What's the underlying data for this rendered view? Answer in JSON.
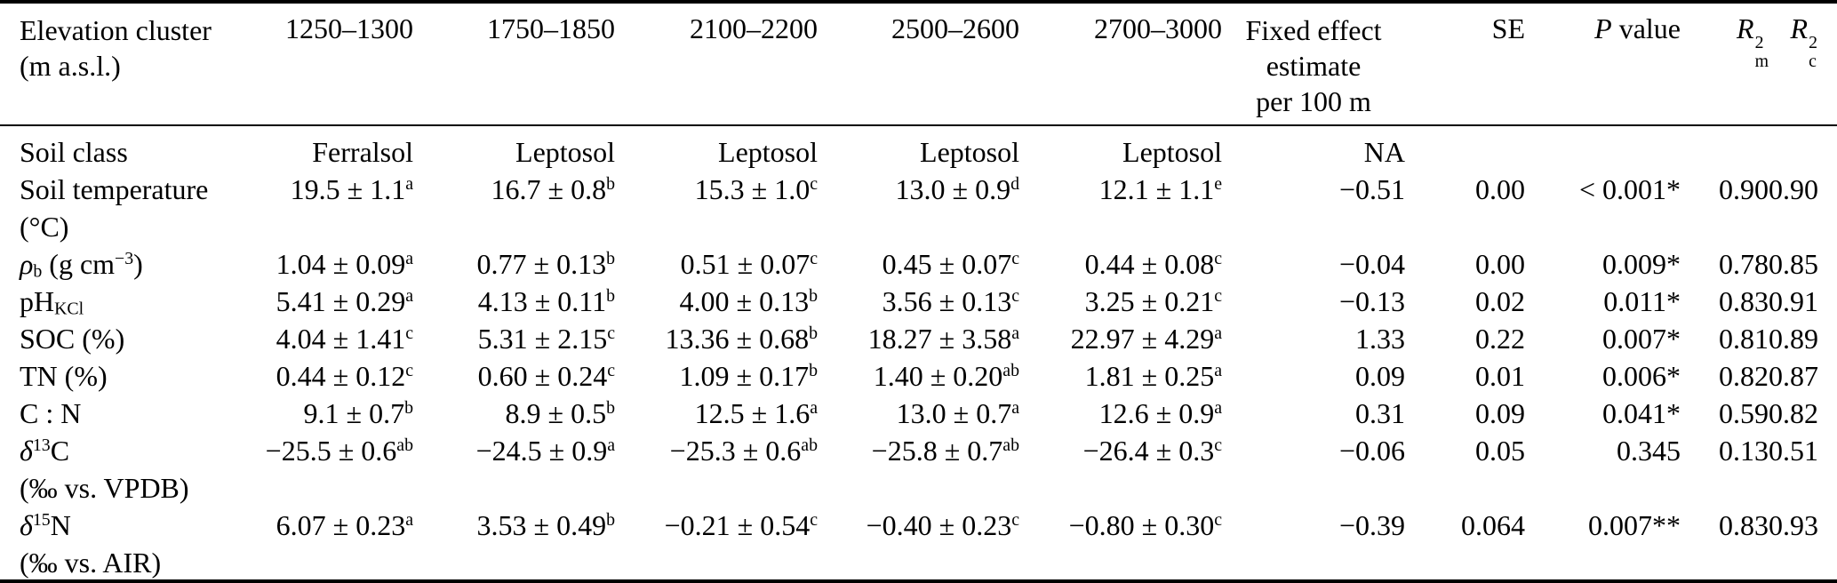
{
  "table": {
    "header": {
      "param_lines": [
        "Elevation cluster",
        "(m a.s.l.)"
      ],
      "clusters": [
        "1250–1300",
        "1750–1850",
        "2100–2200",
        "2500–2600",
        "2700–3000"
      ],
      "fixed_lines": [
        "Fixed effect",
        "estimate",
        "per 100 m"
      ],
      "se": "SE",
      "p_segments": [
        {
          "t": "P",
          "i": true
        },
        {
          "t": " value"
        }
      ],
      "r2m": {
        "base": "R",
        "sup": "2",
        "sub": "m"
      },
      "r2c": {
        "base": "R",
        "sup": "2",
        "sub": "c"
      }
    },
    "rows": [
      {
        "label": [
          {
            "t": "Soil class"
          }
        ],
        "label2": null,
        "cells": [
          {
            "v": "Ferralsol"
          },
          {
            "v": "Leptosol"
          },
          {
            "v": "Leptosol"
          },
          {
            "v": "Leptosol"
          },
          {
            "v": "Leptosol"
          }
        ],
        "fixed": "NA",
        "se": "",
        "p": "",
        "r2m": "",
        "r2c": ""
      },
      {
        "label": [
          {
            "t": "Soil temperature"
          }
        ],
        "label2": [
          {
            "t": "(°C)"
          }
        ],
        "cells": [
          {
            "v": "19.5 ± 1.1",
            "s": "a"
          },
          {
            "v": "16.7 ± 0.8",
            "s": "b"
          },
          {
            "v": "15.3 ± 1.0",
            "s": "c"
          },
          {
            "v": "13.0 ± 0.9",
            "s": "d"
          },
          {
            "v": "12.1 ± 1.1",
            "s": "e"
          }
        ],
        "fixed": "−0.51",
        "se": "0.00",
        "p": "< 0.001*",
        "r2m": "0.90",
        "r2c": "0.90"
      },
      {
        "label": [
          {
            "t": "ρ",
            "i": true
          },
          {
            "t": "b",
            "sub": true
          },
          {
            "t": " (g cm"
          },
          {
            "t": "−3",
            "sup": true
          },
          {
            "t": ")"
          }
        ],
        "label2": null,
        "cells": [
          {
            "v": "1.04 ± 0.09",
            "s": "a"
          },
          {
            "v": "0.77 ± 0.13",
            "s": "b"
          },
          {
            "v": "0.51 ± 0.07",
            "s": "c"
          },
          {
            "v": "0.45 ± 0.07",
            "s": "c"
          },
          {
            "v": "0.44 ± 0.08",
            "s": "c"
          }
        ],
        "fixed": "−0.04",
        "se": "0.00",
        "p": "0.009*",
        "r2m": "0.78",
        "r2c": "0.85"
      },
      {
        "label": [
          {
            "t": "pH"
          },
          {
            "t": "KCl",
            "sub": true
          }
        ],
        "label2": null,
        "cells": [
          {
            "v": "5.41 ± 0.29",
            "s": "a"
          },
          {
            "v": "4.13 ± 0.11",
            "s": "b"
          },
          {
            "v": "4.00 ± 0.13",
            "s": "b"
          },
          {
            "v": "3.56 ± 0.13",
            "s": "c"
          },
          {
            "v": "3.25 ± 0.21",
            "s": "c"
          }
        ],
        "fixed": "−0.13",
        "se": "0.02",
        "p": "0.011*",
        "r2m": "0.83",
        "r2c": "0.91"
      },
      {
        "label": [
          {
            "t": "SOC (%)"
          }
        ],
        "label2": null,
        "cells": [
          {
            "v": "4.04 ± 1.41",
            "s": "c"
          },
          {
            "v": "5.31 ± 2.15",
            "s": "c"
          },
          {
            "v": "13.36 ± 0.68",
            "s": "b"
          },
          {
            "v": "18.27 ± 3.58",
            "s": "a"
          },
          {
            "v": "22.97 ± 4.29",
            "s": "a"
          }
        ],
        "fixed": "1.33",
        "se": "0.22",
        "p": "0.007*",
        "r2m": "0.81",
        "r2c": "0.89"
      },
      {
        "label": [
          {
            "t": "TN (%)"
          }
        ],
        "label2": null,
        "cells": [
          {
            "v": "0.44 ± 0.12",
            "s": "c"
          },
          {
            "v": "0.60 ± 0.24",
            "s": "c"
          },
          {
            "v": "1.09 ± 0.17",
            "s": "b"
          },
          {
            "v": "1.40 ± 0.20",
            "s": "ab"
          },
          {
            "v": "1.81 ± 0.25",
            "s": "a"
          }
        ],
        "fixed": "0.09",
        "se": "0.01",
        "p": "0.006*",
        "r2m": "0.82",
        "r2c": "0.87"
      },
      {
        "label": [
          {
            "t": "C : N"
          }
        ],
        "label2": null,
        "cells": [
          {
            "v": "9.1 ± 0.7",
            "s": "b"
          },
          {
            "v": "8.9 ± 0.5",
            "s": "b"
          },
          {
            "v": "12.5 ± 1.6",
            "s": "a"
          },
          {
            "v": "13.0 ± 0.7",
            "s": "a"
          },
          {
            "v": "12.6 ± 0.9",
            "s": "a"
          }
        ],
        "fixed": "0.31",
        "se": "0.09",
        "p": "0.041*",
        "r2m": "0.59",
        "r2c": "0.82"
      },
      {
        "label": [
          {
            "t": "δ",
            "i": true
          },
          {
            "t": "13",
            "sup": true
          },
          {
            "t": "C"
          }
        ],
        "label2": [
          {
            "t": "(‰ vs. VPDB)"
          }
        ],
        "cells": [
          {
            "v": "−25.5 ± 0.6",
            "s": "ab"
          },
          {
            "v": "−24.5 ± 0.9",
            "s": "a"
          },
          {
            "v": "−25.3 ± 0.6",
            "s": "ab"
          },
          {
            "v": "−25.8 ± 0.7",
            "s": "ab"
          },
          {
            "v": "−26.4 ± 0.3",
            "s": "c"
          }
        ],
        "fixed": "−0.06",
        "se": "0.05",
        "p": "0.345",
        "r2m": "0.13",
        "r2c": "0.51"
      },
      {
        "label": [
          {
            "t": "δ",
            "i": true
          },
          {
            "t": "15",
            "sup": true
          },
          {
            "t": "N"
          }
        ],
        "label2": [
          {
            "t": "(‰ vs. AIR)"
          }
        ],
        "cells": [
          {
            "v": "6.07 ± 0.23",
            "s": "a"
          },
          {
            "v": "3.53 ± 0.49",
            "s": "b"
          },
          {
            "v": "−0.21 ± 0.54",
            "s": "c"
          },
          {
            "v": "−0.40 ± 0.23",
            "s": "c"
          },
          {
            "v": "−0.80 ± 0.30",
            "s": "c"
          }
        ],
        "fixed": "−0.39",
        "se": "0.064",
        "p": "0.007**",
        "r2m": "0.83",
        "r2c": "0.93"
      }
    ]
  }
}
